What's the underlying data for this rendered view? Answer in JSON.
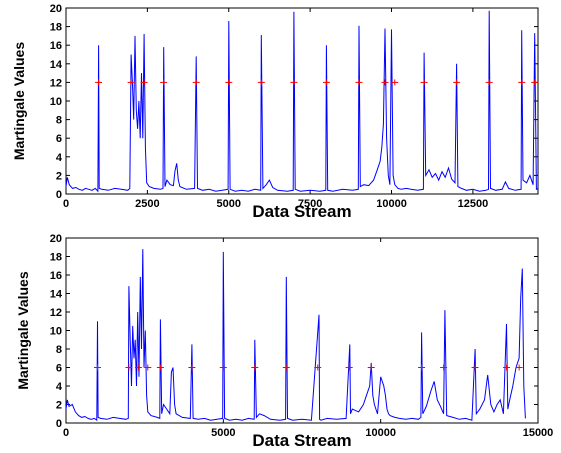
{
  "chart_data": [
    {
      "type": "line",
      "title": "",
      "xlabel": "Data Stream",
      "ylabel": "Martingale Values",
      "xlim": [
        0,
        14500
      ],
      "ylim": [
        0,
        20
      ],
      "xticks": [
        0,
        2500,
        5000,
        7500,
        10000,
        12500
      ],
      "xtick_labels": [
        "0",
        "2500",
        "5000",
        "7500",
        "10000",
        "12500"
      ],
      "yticks": [
        0,
        2,
        4,
        6,
        8,
        10,
        12,
        14,
        16,
        18,
        20
      ],
      "ytick_labels": [
        "0",
        "2",
        "4",
        "6",
        "8",
        "10",
        "12",
        "14",
        "16",
        "18",
        "20"
      ],
      "grid": false,
      "series_color": "#0000ff",
      "marker_color": "#ff0000",
      "threshold": 12,
      "threshold_markers": {
        "x": [
          1000,
          2000,
          2400,
          3000,
          4000,
          5000,
          6000,
          7000,
          8000,
          9000,
          9800,
          10100,
          11000,
          12000,
          13000,
          14000,
          14400
        ],
        "y": 12
      },
      "series": [
        {
          "x": [
            0,
            40,
            100,
            200,
            300,
            400,
            500,
            600,
            700,
            800,
            900,
            980,
            1000,
            1020,
            1100,
            1300,
            1500,
            1700,
            1900,
            1960,
            2000,
            2040,
            2080,
            2120,
            2160,
            2200,
            2240,
            2280,
            2320,
            2360,
            2400,
            2440,
            2480,
            2560,
            2700,
            2900,
            2980,
            3000,
            3040,
            3100,
            3200,
            3300,
            3350,
            3400,
            3450,
            3500,
            3700,
            3950,
            4000,
            4040,
            4200,
            4400,
            4600,
            4800,
            4980,
            5000,
            5040,
            5200,
            5400,
            5600,
            5800,
            5980,
            6000,
            6050,
            6150,
            6250,
            6350,
            6500,
            6800,
            6980,
            7000,
            7040,
            7200,
            7500,
            7800,
            7980,
            8000,
            8040,
            8200,
            8500,
            8800,
            8980,
            9000,
            9040,
            9150,
            9300,
            9450,
            9550,
            9650,
            9700,
            9750,
            9800,
            9850,
            9900,
            9950,
            10000,
            10050,
            10100,
            10150,
            10200,
            10300,
            10450,
            10600,
            10800,
            10980,
            11000,
            11050,
            11150,
            11250,
            11350,
            11450,
            11550,
            11650,
            11750,
            11850,
            11950,
            12000,
            12040,
            12150,
            12300,
            12500,
            12700,
            12900,
            12980,
            13000,
            13040,
            13200,
            13400,
            13500,
            13600,
            13800,
            13980,
            14000,
            14040,
            14150,
            14250,
            14350,
            14400,
            14450,
            14500
          ],
          "y": [
            0.8,
            1.8,
            1.0,
            0.6,
            0.7,
            0.5,
            0.4,
            0.6,
            0.5,
            0.4,
            0.6,
            0.3,
            16.0,
            0.6,
            0.5,
            0.4,
            0.6,
            0.5,
            0.4,
            0.6,
            15.0,
            12.0,
            8.0,
            17.0,
            9.0,
            7.0,
            10.0,
            6.0,
            13.0,
            6.0,
            17.2,
            5.0,
            1.2,
            0.8,
            0.6,
            0.5,
            0.6,
            15.8,
            0.8,
            1.5,
            1.0,
            0.9,
            2.5,
            3.3,
            1.5,
            0.8,
            0.5,
            0.6,
            14.8,
            0.6,
            0.4,
            0.5,
            0.3,
            0.4,
            0.5,
            18.6,
            0.5,
            0.3,
            0.4,
            0.3,
            0.5,
            0.4,
            17.1,
            0.6,
            1.0,
            1.5,
            0.7,
            0.4,
            0.3,
            0.4,
            19.6,
            0.5,
            0.3,
            0.4,
            0.3,
            0.4,
            16.0,
            0.4,
            0.3,
            0.5,
            0.4,
            0.5,
            18.1,
            0.8,
            1.0,
            0.9,
            1.5,
            2.5,
            3.5,
            5.0,
            7.5,
            17.8,
            6.0,
            2.0,
            1.0,
            17.7,
            2.0,
            1.0,
            0.8,
            0.6,
            0.5,
            0.6,
            0.5,
            0.4,
            0.5,
            15.2,
            2.0,
            2.6,
            1.8,
            2.2,
            1.5,
            2.4,
            1.8,
            2.8,
            1.6,
            1.2,
            14.0,
            0.8,
            0.6,
            0.4,
            0.5,
            0.3,
            0.4,
            0.5,
            19.7,
            0.6,
            0.4,
            0.5,
            1.3,
            0.6,
            0.4,
            0.5,
            17.6,
            1.5,
            1.2,
            2.0,
            1.0,
            17.3,
            0.5,
            0.6
          ]
        }
      ]
    },
    {
      "type": "line",
      "title": "",
      "xlabel": "Data Stream",
      "ylabel": "Martingale Values",
      "xlim": [
        0,
        15000
      ],
      "ylim": [
        0,
        20
      ],
      "xticks": [
        0,
        5000,
        10000,
        15000
      ],
      "xtick_labels": [
        "0",
        "5000",
        "10000",
        "15000"
      ],
      "yticks": [
        0,
        2,
        4,
        6,
        8,
        10,
        12,
        14,
        16,
        18,
        20
      ],
      "ytick_labels": [
        "0",
        "2",
        "4",
        "6",
        "8",
        "10",
        "12",
        "14",
        "16",
        "18",
        "20"
      ],
      "grid": false,
      "series_color": "#0000ff",
      "marker_color": "#ff0000",
      "threshold": 6,
      "threshold_markers": {
        "x": [
          1000,
          2000,
          2300,
          2600,
          3000,
          4000,
          5000,
          6000,
          7000,
          8000,
          9000,
          9700,
          11300,
          12000,
          13000,
          14000,
          14400
        ],
        "y": 6
      },
      "series": [
        {
          "x": [
            0,
            40,
            100,
            200,
            300,
            400,
            500,
            600,
            700,
            800,
            900,
            980,
            1000,
            1020,
            1100,
            1300,
            1500,
            1700,
            1900,
            1980,
            2000,
            2040,
            2080,
            2120,
            2160,
            2200,
            2240,
            2280,
            2320,
            2360,
            2400,
            2440,
            2480,
            2520,
            2560,
            2600,
            2700,
            2900,
            2980,
            3000,
            3040,
            3100,
            3200,
            3300,
            3350,
            3400,
            3450,
            3500,
            3700,
            3950,
            4000,
            4040,
            4200,
            4400,
            4600,
            4800,
            4980,
            5000,
            5040,
            5200,
            5400,
            5600,
            5800,
            5980,
            6000,
            6050,
            6150,
            6300,
            6500,
            6800,
            6980,
            7000,
            7040,
            7200,
            7500,
            7800,
            8040,
            8060,
            8100,
            8300,
            8600,
            8900,
            9020,
            9040,
            9100,
            9300,
            9450,
            9550,
            9650,
            9700,
            9750,
            9800,
            9850,
            9900,
            10000,
            10100,
            10150,
            10200,
            10250,
            10300,
            10450,
            10600,
            10800,
            11000,
            11200,
            11280,
            11300,
            11340,
            11450,
            11600,
            11700,
            11800,
            11900,
            12000,
            12040,
            12100,
            12300,
            12500,
            12700,
            12900,
            13000,
            13040,
            13150,
            13300,
            13400,
            13500,
            13600,
            13700,
            13800,
            13900,
            14000,
            14040,
            14100,
            14200,
            14300,
            14400,
            14450,
            14500,
            14550,
            14600
          ],
          "y": [
            1.5,
            2.5,
            1.8,
            2.0,
            1.2,
            0.8,
            0.6,
            0.7,
            0.5,
            0.4,
            0.5,
            0.3,
            11.0,
            0.6,
            0.5,
            0.4,
            0.6,
            0.5,
            0.4,
            0.5,
            14.8,
            9.0,
            4.0,
            10.5,
            7.0,
            9.0,
            4.0,
            12.0,
            5.0,
            15.8,
            8.0,
            18.8,
            6.0,
            10.0,
            3.0,
            1.2,
            0.8,
            0.6,
            0.5,
            11.2,
            1.0,
            2.0,
            1.5,
            1.0,
            5.5,
            6.0,
            2.0,
            1.0,
            0.6,
            0.5,
            8.5,
            0.5,
            0.4,
            0.5,
            0.3,
            0.4,
            0.5,
            18.5,
            0.5,
            0.3,
            0.4,
            0.3,
            0.5,
            0.4,
            9.0,
            0.6,
            1.0,
            0.8,
            0.4,
            0.3,
            0.4,
            15.8,
            0.5,
            0.3,
            0.4,
            0.3,
            11.7,
            0.4,
            0.3,
            0.5,
            0.4,
            0.5,
            8.5,
            1.0,
            1.5,
            1.2,
            2.0,
            3.0,
            4.0,
            6.5,
            3.0,
            2.0,
            1.5,
            1.0,
            5.0,
            4.0,
            3.0,
            1.5,
            1.0,
            0.8,
            0.6,
            0.5,
            0.4,
            0.5,
            0.4,
            0.6,
            9.8,
            1.0,
            1.8,
            3.5,
            4.5,
            2.5,
            1.8,
            1.0,
            12.2,
            0.8,
            0.6,
            0.4,
            0.5,
            0.3,
            8.0,
            1.0,
            1.5,
            2.5,
            5.2,
            2.0,
            1.2,
            2.0,
            2.5,
            1.0,
            10.7,
            1.5,
            2.5,
            4.0,
            6.0,
            7.0,
            13.5,
            16.7,
            4.0,
            0.5
          ]
        }
      ]
    }
  ]
}
